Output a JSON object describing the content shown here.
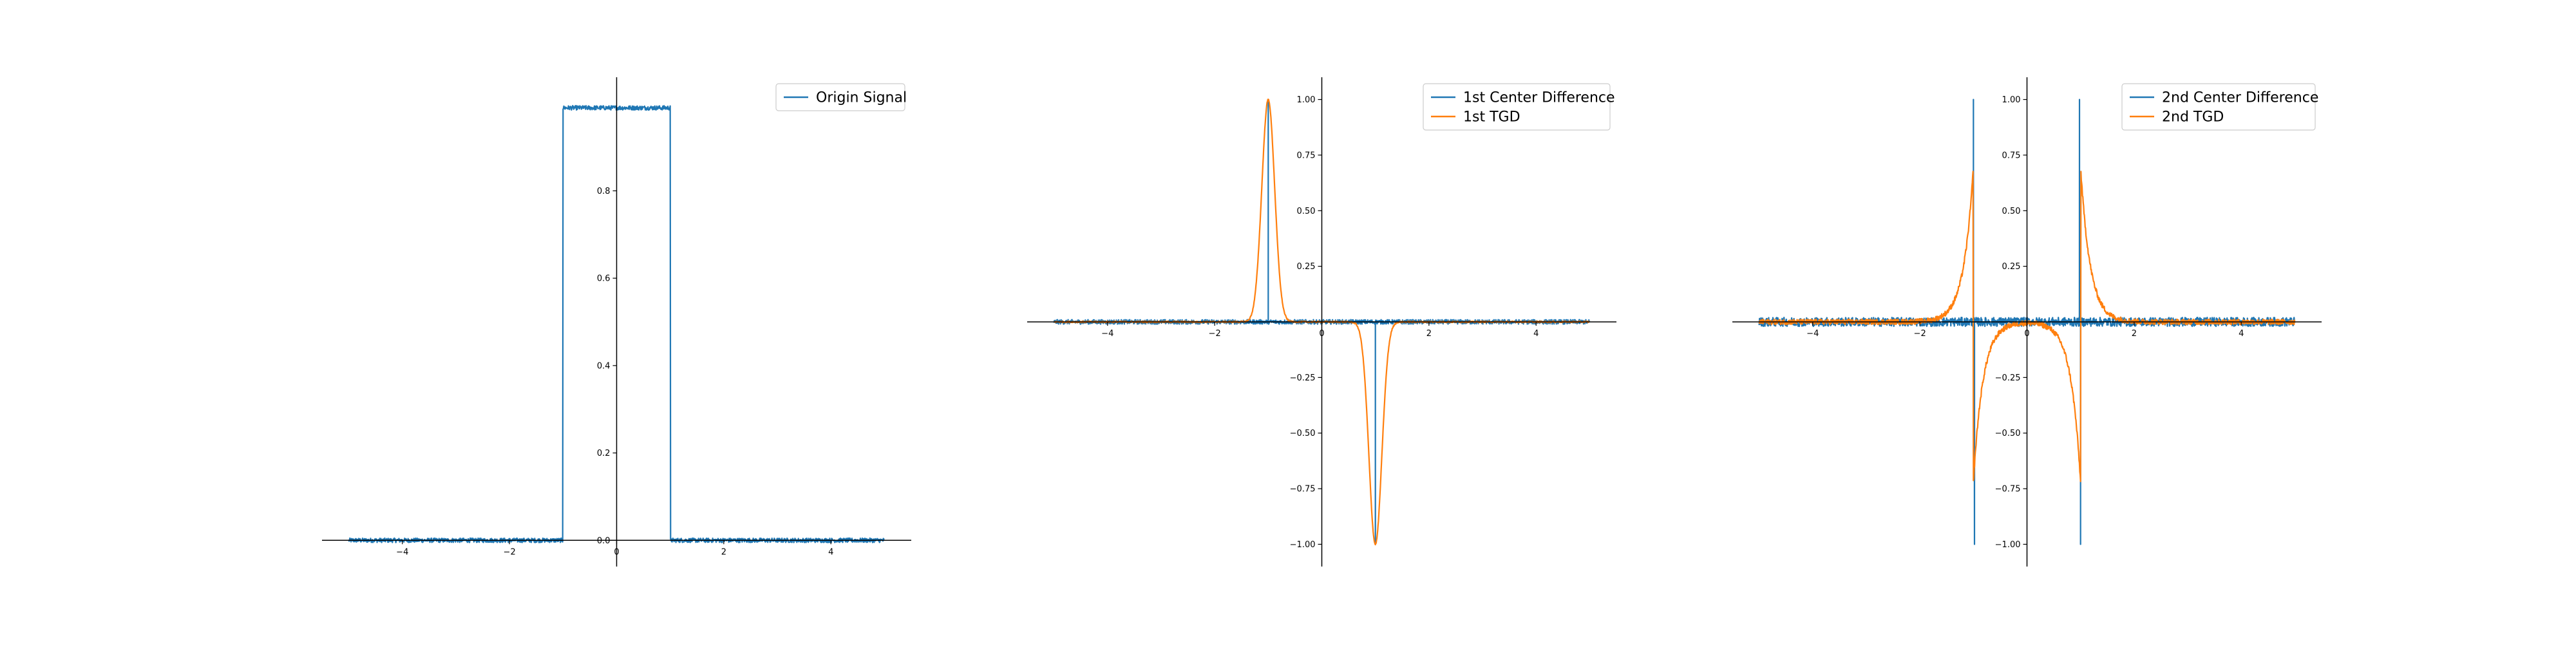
{
  "colors": {
    "series_blue": "#1f77b4",
    "series_orange": "#ff7f0e",
    "axis": "#000000",
    "legend_border": "#cccccc"
  },
  "chart_data": [
    {
      "type": "line",
      "title": "",
      "xlabel": "",
      "ylabel": "",
      "xlim": [
        -5.5,
        5.5
      ],
      "ylim": [
        -0.06,
        1.06
      ],
      "spines": "centered",
      "grid": false,
      "legend_placement": "top-right",
      "x_ticks": [
        -4,
        -2,
        0,
        2,
        4
      ],
      "x_tick_labels": [
        "−4",
        "−2",
        "0",
        "2",
        "4"
      ],
      "y_ticks": [
        0.0,
        0.2,
        0.4,
        0.6,
        0.8
      ],
      "y_tick_labels": [
        "0.0",
        "0.2",
        "0.4",
        "0.6",
        "0.8"
      ],
      "series": [
        {
          "name": "Origin Signal",
          "color": "#1f77b4",
          "kind": "noisy_rect",
          "x_range": [
            -5,
            5
          ],
          "low": 0.0,
          "high": 0.99,
          "rect_from": -1,
          "rect_to": 1,
          "noise": 0.005
        }
      ]
    },
    {
      "type": "line",
      "title": "",
      "xlabel": "",
      "ylabel": "",
      "xlim": [
        -5.5,
        5.5
      ],
      "ylim": [
        -1.1,
        1.1
      ],
      "spines": "centered",
      "grid": false,
      "legend_placement": "top-right",
      "x_ticks": [
        -4,
        -2,
        0,
        2,
        4
      ],
      "x_tick_labels": [
        "−4",
        "−2",
        "0",
        "2",
        "4"
      ],
      "y_ticks": [
        -1.0,
        -0.75,
        -0.5,
        -0.25,
        0.25,
        0.5,
        0.75,
        1.0
      ],
      "y_tick_labels": [
        "−1.00",
        "−0.75",
        "−0.50",
        "−0.25",
        "0.25",
        "0.50",
        "0.75",
        "1.00"
      ],
      "series": [
        {
          "name": "1st Center Difference",
          "color": "#1f77b4",
          "kind": "noisy_spikes",
          "x_range": [
            -5,
            5
          ],
          "noise": 0.01,
          "spikes": [
            [
              -1,
              1.0
            ],
            [
              1,
              -1.0
            ]
          ]
        },
        {
          "name": "1st TGD",
          "color": "#ff7f0e",
          "kind": "gauss_pair",
          "x_range": [
            -5,
            5
          ],
          "centers": [
            [
              -1,
              1.0
            ],
            [
              1,
              -1.0
            ]
          ],
          "sigma": 0.12,
          "noise": 0.003
        }
      ]
    },
    {
      "type": "line",
      "title": "",
      "xlabel": "",
      "ylabel": "",
      "xlim": [
        -5.5,
        5.5
      ],
      "ylim": [
        -1.1,
        1.1
      ],
      "spines": "centered",
      "grid": false,
      "legend_placement": "top-right",
      "x_ticks": [
        -4,
        -2,
        0,
        2,
        4
      ],
      "x_tick_labels": [
        "−4",
        "−2",
        "0",
        "2",
        "4"
      ],
      "y_ticks": [
        -1.0,
        -0.75,
        -0.5,
        -0.25,
        0.25,
        0.5,
        0.75,
        1.0
      ],
      "y_tick_labels": [
        "−1.00",
        "−0.75",
        "−0.50",
        "−0.25",
        "0.25",
        "0.50",
        "0.75",
        "1.00"
      ],
      "series": [
        {
          "name": "2nd Center Difference",
          "color": "#1f77b4",
          "kind": "noisy_spikes",
          "x_range": [
            -5,
            5
          ],
          "noise": 0.02,
          "spikes": [
            [
              -1,
              1.0
            ],
            [
              -0.98,
              -1.0
            ],
            [
              0.98,
              1.0
            ],
            [
              1,
              -1.0
            ]
          ]
        },
        {
          "name": "2nd TGD",
          "color": "#ff7f0e",
          "kind": "exp_edges",
          "x_range": [
            -5,
            5
          ],
          "edges": [
            {
              "at": -1,
              "outside": 0.7,
              "inside": -0.72
            },
            {
              "at": 1,
              "outside": 0.7,
              "inside": -0.72
            }
          ],
          "decay": 0.18,
          "noise": 0.012
        }
      ]
    }
  ]
}
